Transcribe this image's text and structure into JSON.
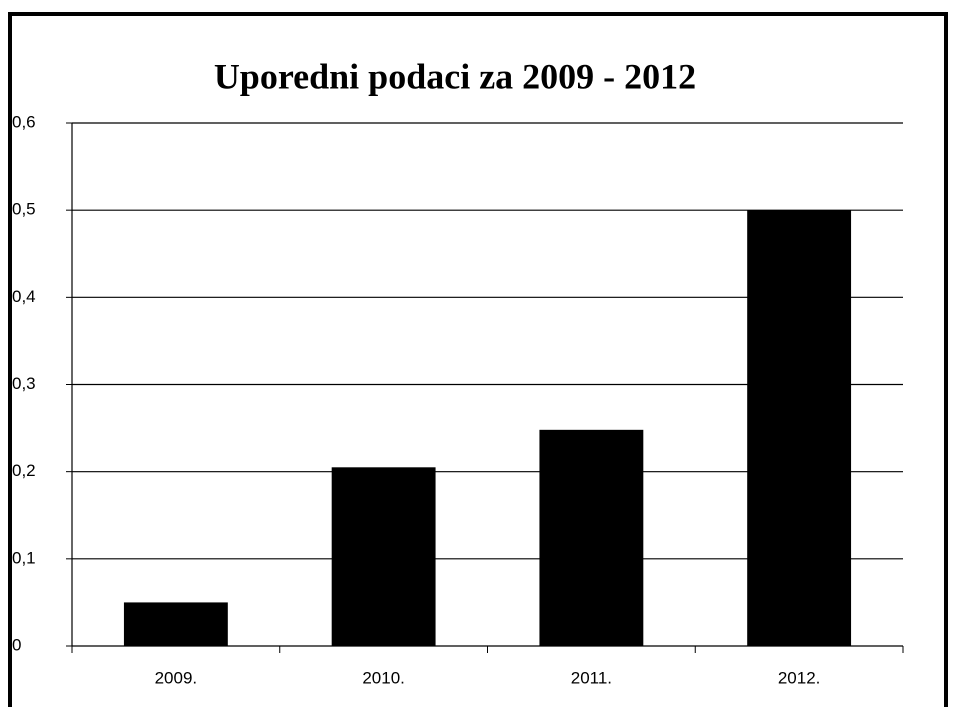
{
  "chart_data": {
    "type": "bar",
    "title": "Uporedni podaci za 2009 - 2012",
    "categories": [
      "2009.",
      "2010.",
      "2011.",
      "2012."
    ],
    "values": [
      0.05,
      0.205,
      0.248,
      0.5
    ],
    "color": "#000000",
    "ylim": [
      0,
      0.6
    ],
    "yticks": [
      0,
      {
        "value": 0.1,
        "label": "0,1"
      },
      {
        "value": 0.2,
        "label": "0,2"
      },
      {
        "value": 0.3,
        "label": "0,3"
      },
      {
        "value": 0.4,
        "label": "0,4"
      },
      {
        "value": 0.5,
        "label": "0,5"
      },
      {
        "value": 0.6,
        "label": "0,6"
      }
    ],
    "grid": true
  }
}
